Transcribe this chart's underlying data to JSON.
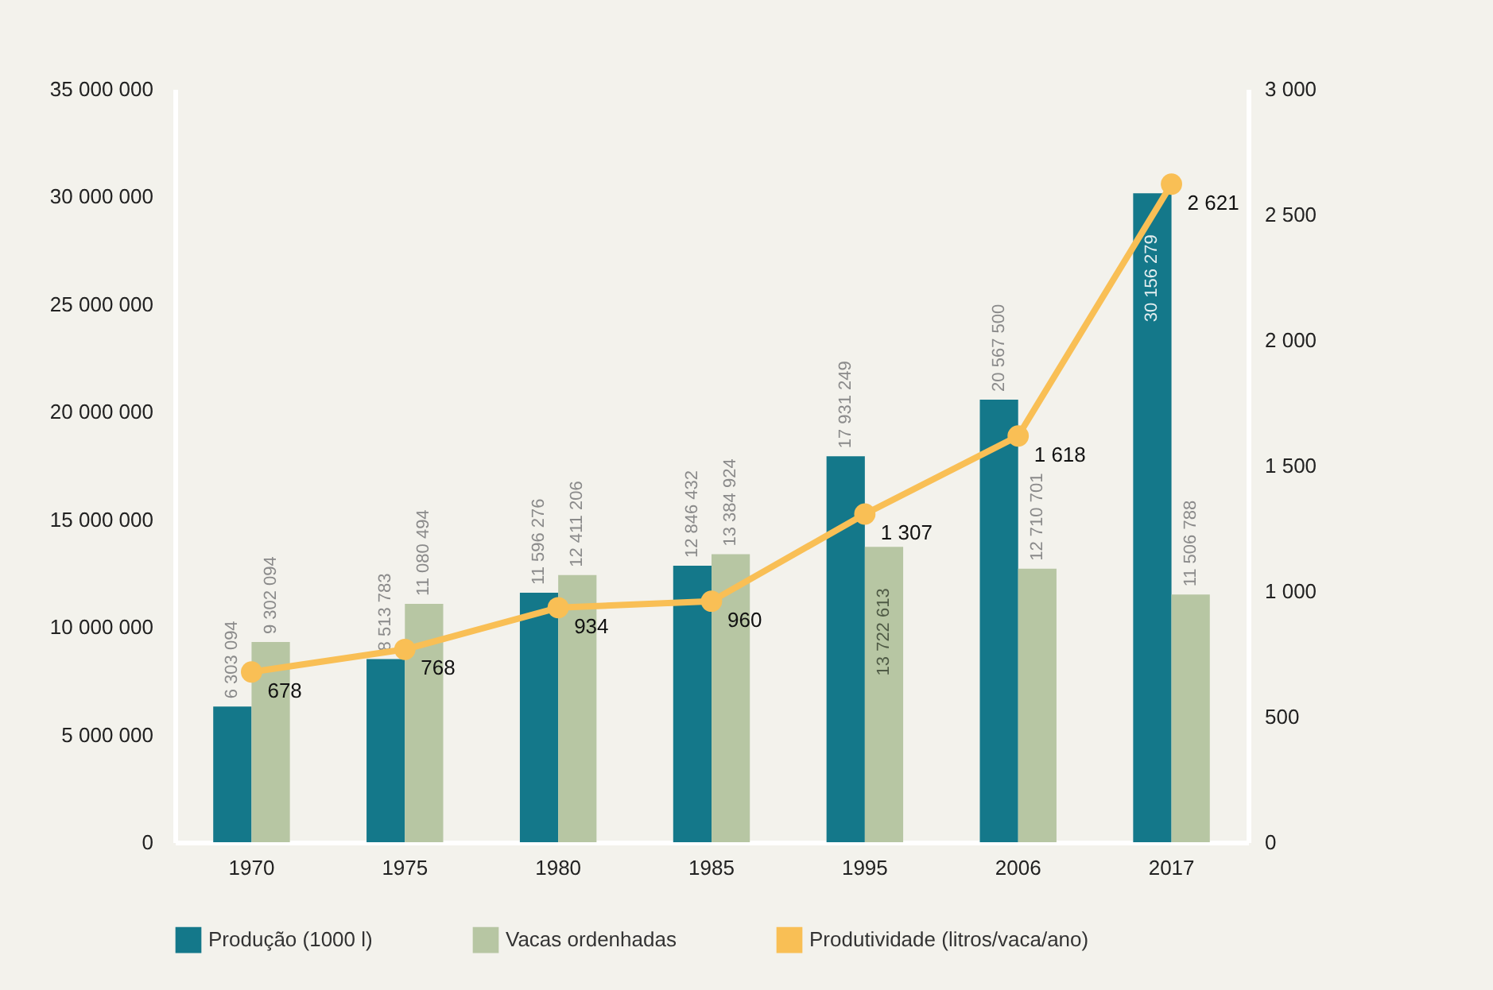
{
  "chart_data": {
    "type": "bar",
    "categories": [
      "1970",
      "1975",
      "1980",
      "1985",
      "1995",
      "2006",
      "2017"
    ],
    "series": [
      {
        "name": "Produção (1000 l)",
        "color": "#14788a",
        "values": [
          6303094,
          8513783,
          11596276,
          12846432,
          17931249,
          20567500,
          30156279
        ]
      },
      {
        "name": "Vacas ordenhadas",
        "color": "#b7c6a3",
        "values": [
          9302094,
          11080494,
          12411206,
          13384924,
          13722613,
          12710701,
          11506788
        ]
      },
      {
        "name": "Produtividade (litros/vaca/ano)",
        "color": "#f9bf55",
        "type": "line",
        "axis": "y2",
        "marker": "circle",
        "line_style": "solid",
        "values": [
          678,
          768,
          934,
          960,
          1307,
          1618,
          2621
        ]
      }
    ],
    "ylim": [
      0,
      35000000
    ],
    "yticks": [
      0,
      5000000,
      10000000,
      15000000,
      20000000,
      25000000,
      30000000,
      35000000
    ],
    "y2lim": [
      0,
      3000
    ],
    "y2ticks": [
      0,
      500,
      1000,
      1500,
      2000,
      2500,
      3000
    ],
    "data_labels": true,
    "grid": false,
    "legend": "bottom"
  }
}
